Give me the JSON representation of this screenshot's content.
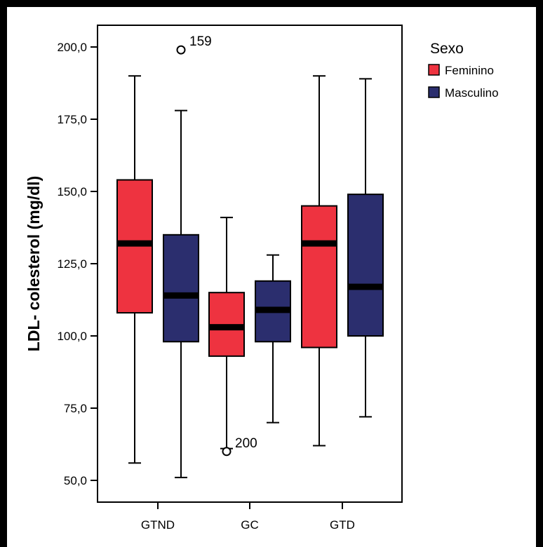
{
  "chart_data": {
    "type": "boxplot",
    "ylabel": "LDL- colesterol (mg/dl)",
    "xlabel": "",
    "ylim": [
      45,
      207
    ],
    "y_ticks": [
      50,
      75,
      100,
      125,
      150,
      175,
      200
    ],
    "y_tick_labels": [
      "50,0",
      "75,0",
      "100,0",
      "125,0",
      "150,0",
      "175,0",
      "200,0"
    ],
    "categories": [
      "GTND",
      "GC",
      "GTD"
    ],
    "legend": {
      "title": "Sexo",
      "position": "right",
      "entries": [
        "Feminino",
        "Masculino"
      ]
    },
    "colors": {
      "Feminino": "#ee3340",
      "Masculino": "#2b2e6e"
    },
    "series": [
      {
        "name": "Feminino",
        "boxes": [
          {
            "min": 56,
            "q1": 108,
            "median": 132,
            "q3": 154,
            "max": 190
          },
          {
            "min": 61,
            "q1": 93,
            "median": 103,
            "q3": 115,
            "max": 141
          },
          {
            "min": 62,
            "q1": 96,
            "median": 132,
            "q3": 145,
            "max": 190
          }
        ]
      },
      {
        "name": "Masculino",
        "boxes": [
          {
            "min": 51,
            "q1": 98,
            "median": 114,
            "q3": 135,
            "max": 178
          },
          {
            "min": 70,
            "q1": 98,
            "median": 109,
            "q3": 119,
            "max": 128
          },
          {
            "min": 72,
            "q1": 100,
            "median": 117,
            "q3": 149,
            "max": 189
          }
        ]
      }
    ],
    "outliers": [
      {
        "category": "GTND",
        "series": "Masculino",
        "value": 199,
        "label": "159"
      },
      {
        "category": "GC",
        "series": "Feminino",
        "value": 60,
        "label": "200"
      }
    ]
  }
}
